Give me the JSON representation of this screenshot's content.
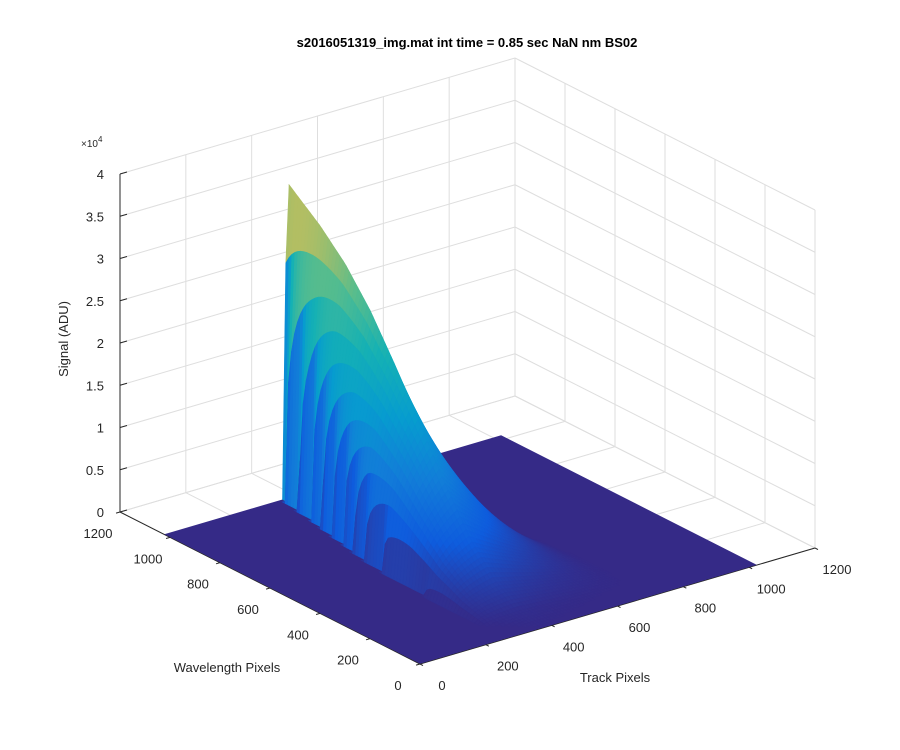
{
  "chart_data": {
    "type": "surface",
    "title": "s2016051319_img.mat int time = 0.85 sec  NaN nm BS02",
    "xlabel": "Track Pixels",
    "ylabel": "Wavelength Pixels",
    "zlabel": "Signal (ADU)",
    "xlim": [
      0,
      1200
    ],
    "ylim": [
      0,
      1200
    ],
    "zlim": [
      0,
      40000
    ],
    "x_ticks": [
      0,
      200,
      400,
      600,
      800,
      1000,
      1200
    ],
    "y_ticks": [
      0,
      200,
      400,
      600,
      800,
      1000,
      1200
    ],
    "z_ticks": [
      0,
      0.5,
      1,
      1.5,
      2,
      2.5,
      3,
      3.5,
      4
    ],
    "z_tick_labels": [
      "0",
      "0.5",
      "1",
      "1.5",
      "2",
      "2.5",
      "3",
      "3.5",
      "4"
    ],
    "z_exponent_base": "×10",
    "z_exponent_power": "4",
    "grid": true,
    "colormap": "parula",
    "surface_extent": {
      "track": [
        1,
        1024
      ],
      "wavelength": [
        1,
        1024
      ]
    },
    "peak_profile": {
      "description_points_wavelength": [
        1024,
        900,
        800,
        700,
        600,
        500,
        400,
        300,
        200,
        100
      ],
      "peak_signal": [
        37000,
        34000,
        31000,
        27000,
        22000,
        16500,
        11000,
        6000,
        2500,
        500
      ],
      "peak_track_center": 380,
      "track_halfwidth": [
        30,
        60,
        90,
        120,
        150,
        170,
        180,
        185,
        190,
        190
      ]
    },
    "baseline_signal": 0
  }
}
